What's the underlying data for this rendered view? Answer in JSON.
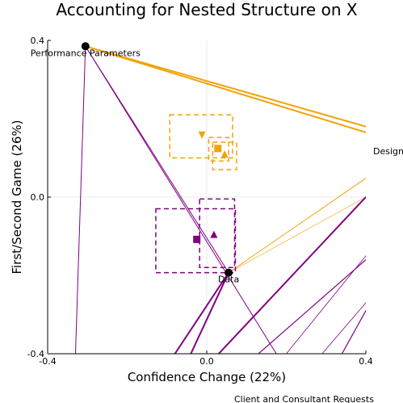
{
  "chart_data": {
    "type": "scatter",
    "title": "Accounting for Nested Structure on X",
    "xlabel": "Confidence Change (22%)",
    "ylabel": "First/Second Game (26%)",
    "xlim": [
      -0.4,
      0.4
    ],
    "ylim": [
      -0.4,
      0.4
    ],
    "xticks": [
      "-0.4",
      "0.0",
      "0.4"
    ],
    "yticks": [
      "0.4",
      "0.0",
      "-0.4"
    ],
    "grid": true,
    "colors": {
      "orange": "#f0a30a",
      "purple": "#800080",
      "black": "#000000"
    },
    "anchors": [
      {
        "label": "Performance Parameters",
        "x": -0.305,
        "y": 0.385
      },
      {
        "label": "Data",
        "x": 0.055,
        "y": -0.193
      }
    ],
    "offscreen_labels": [
      "Design",
      "Client and Consultant Requests"
    ],
    "orange_markers": [
      {
        "shape": "triangle-down",
        "x": -0.012,
        "y": 0.158
      },
      {
        "shape": "square",
        "x": 0.028,
        "y": 0.124
      },
      {
        "shape": "triangle-up",
        "x": 0.045,
        "y": 0.11
      }
    ],
    "orange_boxes": [
      {
        "x0": -0.093,
        "x1": 0.065,
        "y0": 0.1,
        "y1": 0.21
      },
      {
        "x0": 0.005,
        "x1": 0.055,
        "y0": 0.092,
        "y1": 0.152
      },
      {
        "x0": 0.015,
        "x1": 0.075,
        "y0": 0.07,
        "y1": 0.14
      }
    ],
    "purple_markers": [
      {
        "shape": "square",
        "x": -0.025,
        "y": -0.108
      },
      {
        "shape": "triangle-up",
        "x": 0.018,
        "y": -0.095
      }
    ],
    "purple_boxes": [
      {
        "x0": -0.128,
        "x1": 0.072,
        "y0": -0.193,
        "y1": -0.03
      },
      {
        "x0": -0.018,
        "x1": 0.07,
        "y0": -0.18,
        "y1": -0.005
      }
    ],
    "lines": [
      {
        "color": "orange",
        "width": 2,
        "x1": -0.305,
        "y1": 0.385,
        "x2": 0.4,
        "y2": 0.18
      },
      {
        "color": "orange",
        "width": 2,
        "x1": -0.305,
        "y1": 0.385,
        "x2": 0.4,
        "y2": 0.165
      },
      {
        "color": "orange",
        "width": 1,
        "x1": 0.055,
        "y1": -0.193,
        "x2": 0.4,
        "y2": 0.048
      },
      {
        "color": "orange",
        "width": 0.6,
        "x1": 0.055,
        "y1": -0.193,
        "x2": 0.4,
        "y2": 0.0
      },
      {
        "color": "purple",
        "width": 1,
        "x1": -0.305,
        "y1": 0.385,
        "x2": -0.33,
        "y2": -0.4
      },
      {
        "color": "purple",
        "width": 1,
        "x1": -0.305,
        "y1": 0.385,
        "x2": 0.175,
        "y2": -0.4
      },
      {
        "color": "purple",
        "width": 1,
        "x1": -0.305,
        "y1": 0.385,
        "x2": 0.055,
        "y2": -0.193
      },
      {
        "color": "purple",
        "width": 2,
        "x1": 0.055,
        "y1": -0.193,
        "x2": -0.08,
        "y2": -0.4
      },
      {
        "color": "purple",
        "width": 2,
        "x1": 0.055,
        "y1": -0.193,
        "x2": -0.04,
        "y2": -0.4
      },
      {
        "color": "purple",
        "width": 2,
        "x1": 0.03,
        "y1": -0.4,
        "x2": 0.4,
        "y2": 0.0
      },
      {
        "color": "purple",
        "width": 1.2,
        "x1": 0.13,
        "y1": -0.4,
        "x2": 0.4,
        "y2": -0.16
      },
      {
        "color": "purple",
        "width": 0.8,
        "x1": 0.2,
        "y1": -0.4,
        "x2": 0.4,
        "y2": -0.15
      },
      {
        "color": "purple",
        "width": 0.8,
        "x1": 0.29,
        "y1": -0.4,
        "x2": 0.4,
        "y2": -0.27
      },
      {
        "color": "purple",
        "width": 1.2,
        "x1": 0.34,
        "y1": -0.4,
        "x2": 0.4,
        "y2": -0.29
      }
    ]
  }
}
